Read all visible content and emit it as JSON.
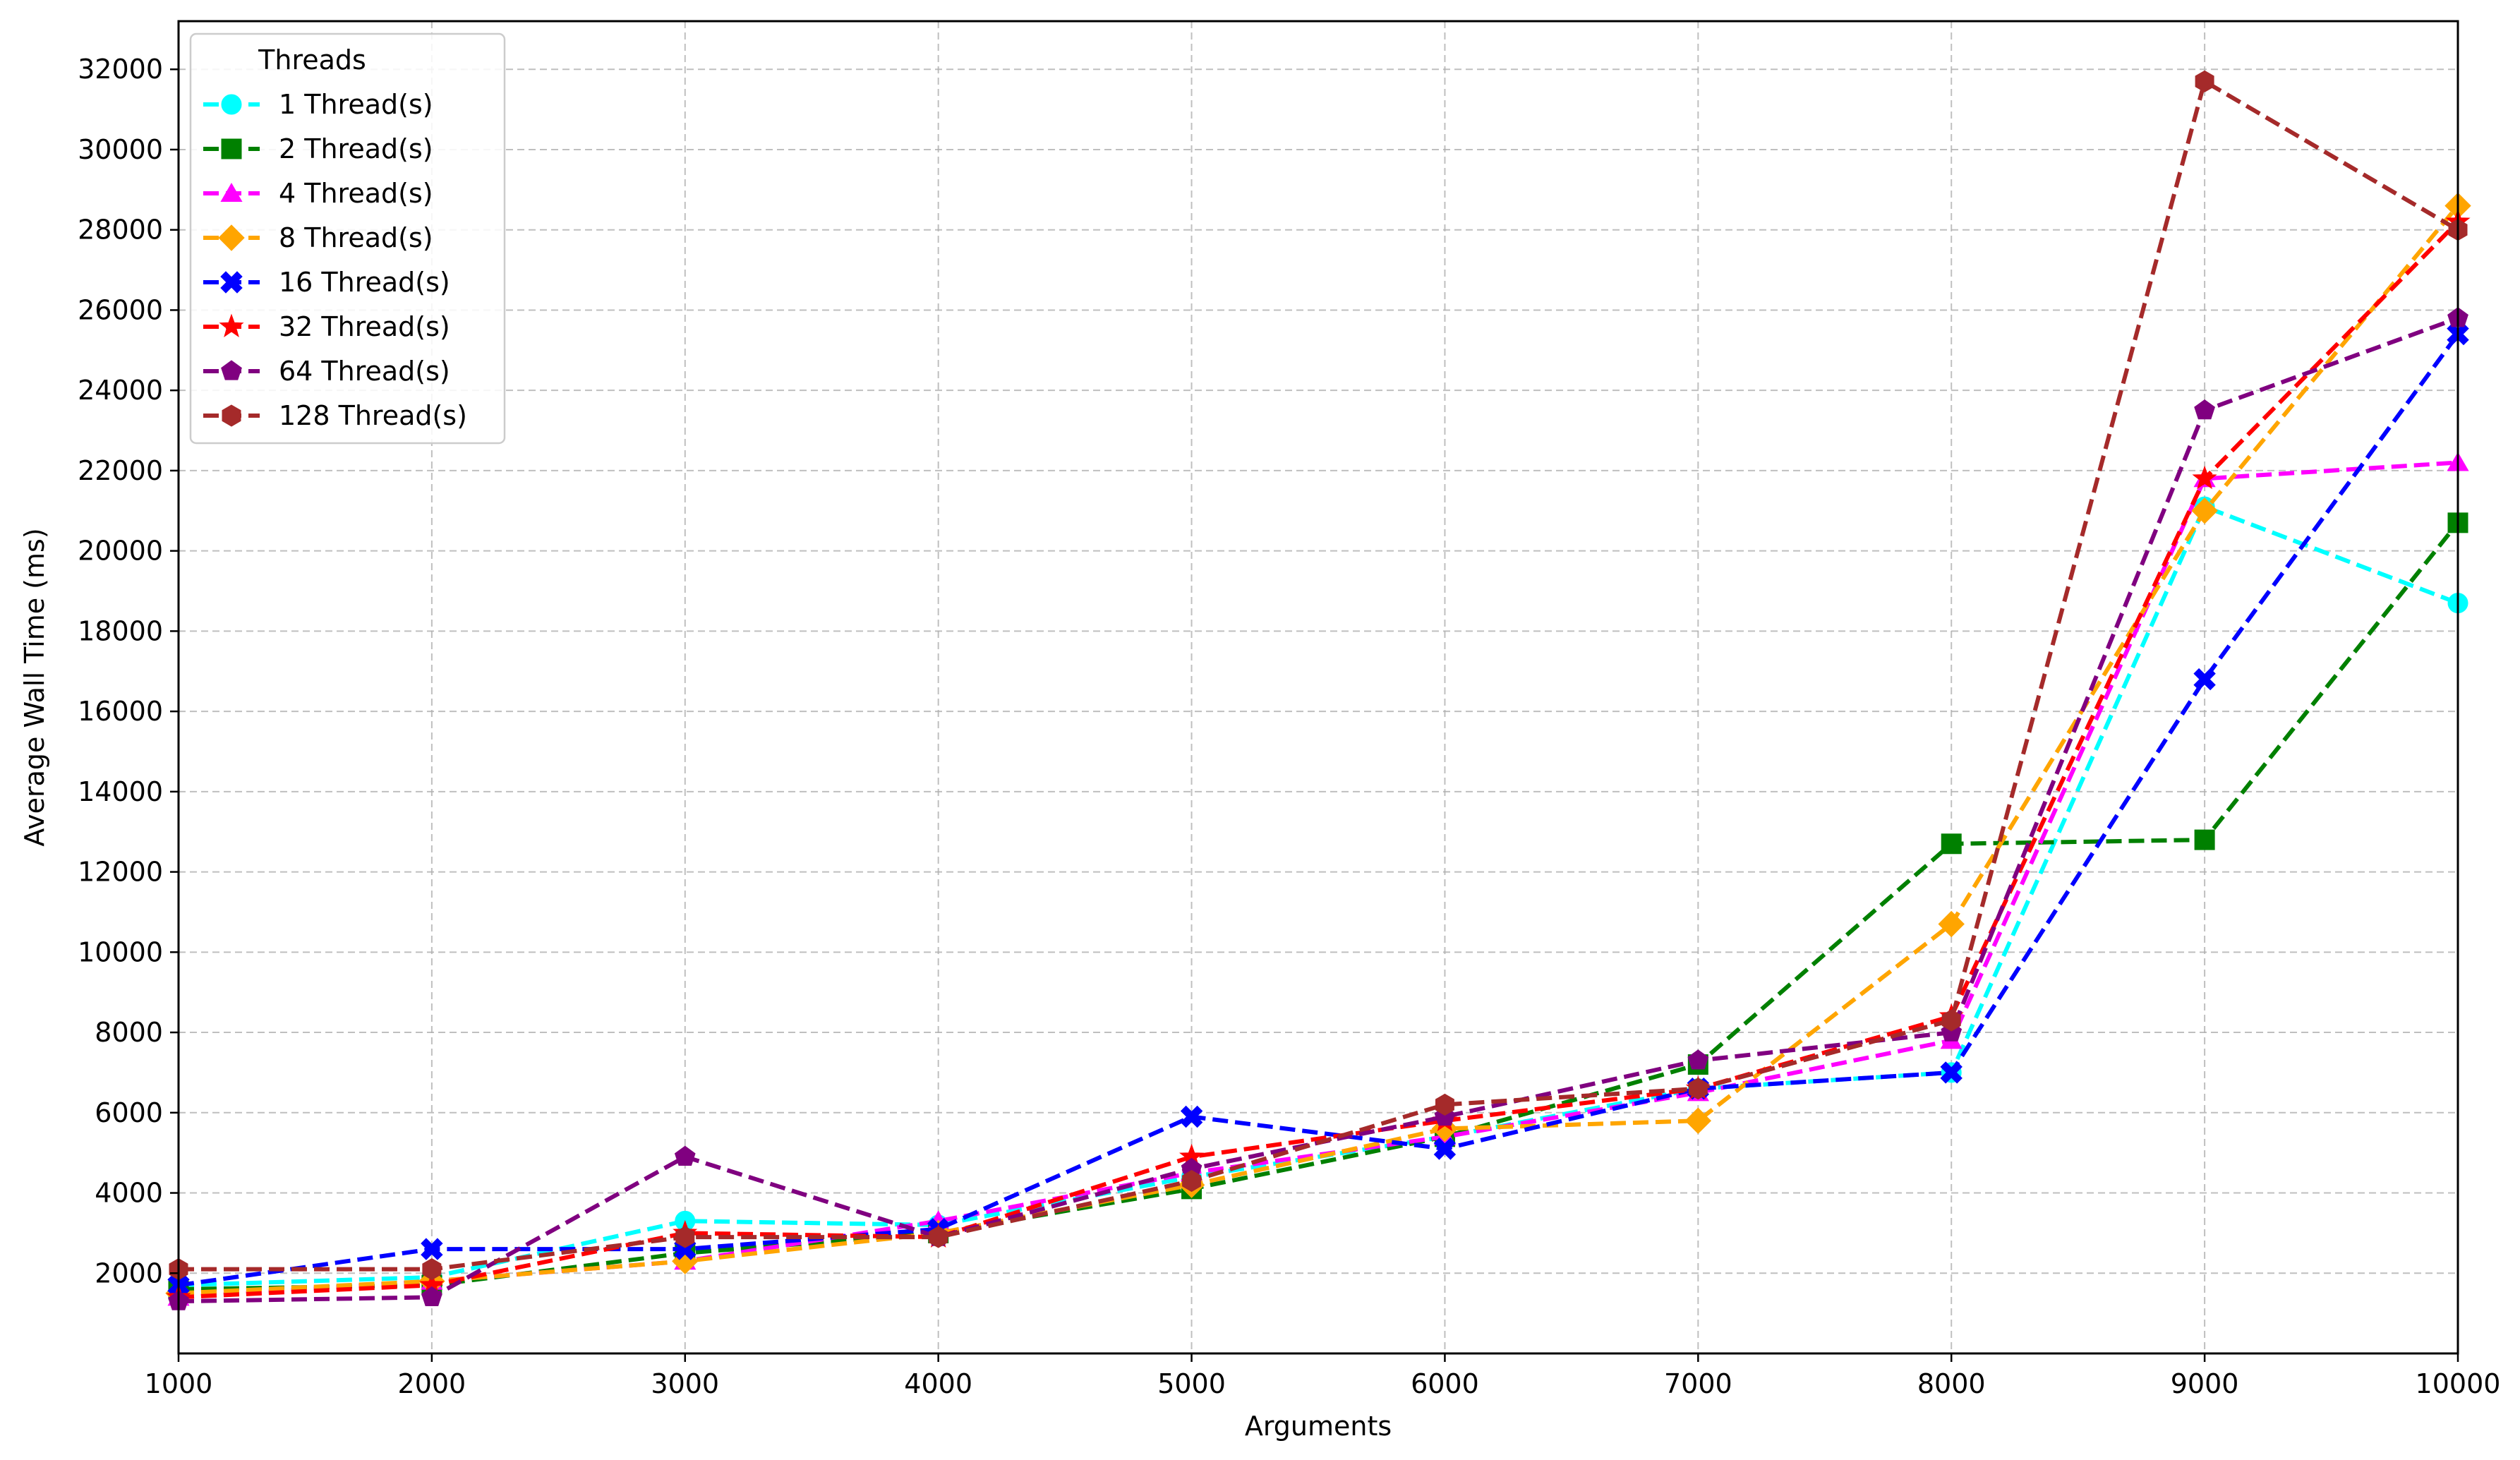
{
  "chart_data": {
    "type": "line",
    "xlabel": "Arguments",
    "ylabel": "Average Wall Time (ms)",
    "xlim": [
      1000,
      10000
    ],
    "ylim": [
      0,
      33200
    ],
    "grid": true,
    "line_style": "dashed",
    "x_ticks": [
      1000,
      2000,
      3000,
      4000,
      5000,
      6000,
      7000,
      8000,
      9000,
      10000
    ],
    "y_ticks": [
      2000,
      4000,
      6000,
      8000,
      10000,
      12000,
      14000,
      16000,
      18000,
      20000,
      22000,
      24000,
      26000,
      28000,
      30000,
      32000
    ],
    "legend": {
      "title": "Threads",
      "placement": "top-left"
    },
    "x": [
      1000,
      2000,
      3000,
      4000,
      5000,
      6000,
      7000,
      8000,
      9000,
      10000
    ],
    "series": [
      {
        "name": "1 Thread(s)",
        "color": "#00ffff",
        "marker": "circle",
        "values": [
          1700,
          1900,
          3300,
          3200,
          4400,
          5400,
          6600,
          7000,
          21100,
          18700
        ]
      },
      {
        "name": "2 Thread(s)",
        "color": "#008000",
        "marker": "square",
        "values": [
          1600,
          1700,
          2500,
          3000,
          4100,
          5400,
          7200,
          12700,
          12800,
          20700
        ]
      },
      {
        "name": "4 Thread(s)",
        "color": "#ff00ff",
        "marker": "triangle",
        "values": [
          1400,
          1800,
          2300,
          3300,
          4500,
          5400,
          6500,
          7800,
          21800,
          22200
        ]
      },
      {
        "name": "8 Thread(s)",
        "color": "#ffa500",
        "marker": "diamond",
        "values": [
          1500,
          1800,
          2300,
          3000,
          4200,
          5600,
          5800,
          10700,
          21000,
          28600
        ]
      },
      {
        "name": "16 Thread(s)",
        "color": "#0000ff",
        "marker": "x",
        "values": [
          1700,
          2600,
          2600,
          3100,
          5900,
          5100,
          6600,
          7000,
          16800,
          25400
        ]
      },
      {
        "name": "32 Thread(s)",
        "color": "#ff0000",
        "marker": "star",
        "values": [
          1400,
          1700,
          3000,
          2900,
          4900,
          5800,
          6600,
          8400,
          21800,
          28200
        ]
      },
      {
        "name": "64 Thread(s)",
        "color": "#800080",
        "marker": "pentagon",
        "values": [
          1300,
          1400,
          4900,
          2900,
          4600,
          5900,
          7300,
          8000,
          23500,
          25800
        ]
      },
      {
        "name": "128 Thread(s)",
        "color": "#a52a2a",
        "marker": "hexagon",
        "values": [
          2100,
          2100,
          2900,
          2900,
          4300,
          6200,
          6600,
          8300,
          31700,
          28000
        ]
      }
    ]
  }
}
